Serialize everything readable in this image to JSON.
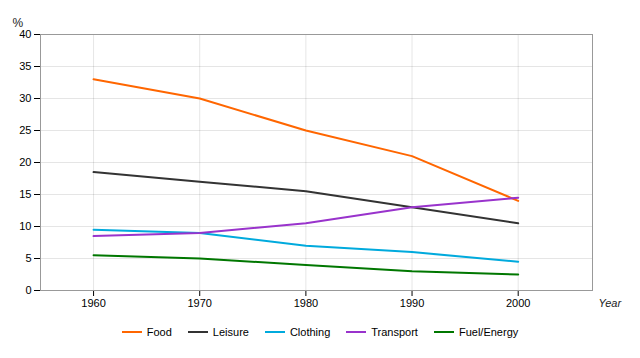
{
  "chart_data": {
    "type": "line",
    "x": [
      1960,
      1970,
      1980,
      1990,
      2000
    ],
    "series": [
      {
        "name": "Food",
        "color": "#FF6600",
        "values": [
          33,
          30,
          25,
          21,
          14
        ]
      },
      {
        "name": "Leisure",
        "color": "#333333",
        "values": [
          18.5,
          17,
          15.5,
          13,
          10.5
        ]
      },
      {
        "name": "Clothing",
        "color": "#00AADD",
        "values": [
          9.5,
          9,
          7,
          6,
          4.5
        ]
      },
      {
        "name": "Transport",
        "color": "#9933CC",
        "values": [
          8.5,
          9,
          10.5,
          13,
          14.5
        ]
      },
      {
        "name": "Fuel/Energy",
        "color": "#007700",
        "values": [
          5.5,
          5,
          4,
          3,
          2.5
        ]
      }
    ],
    "xlabel": "Year",
    "ylabel": "%",
    "xlim": [
      1955,
      2007
    ],
    "ylim": [
      0,
      40
    ],
    "xticks": [
      1960,
      1970,
      1980,
      1990,
      2000
    ],
    "yticks": [
      0,
      5,
      10,
      15,
      20,
      25,
      30,
      35,
      40
    ],
    "grid": true,
    "legend": "bottom"
  }
}
